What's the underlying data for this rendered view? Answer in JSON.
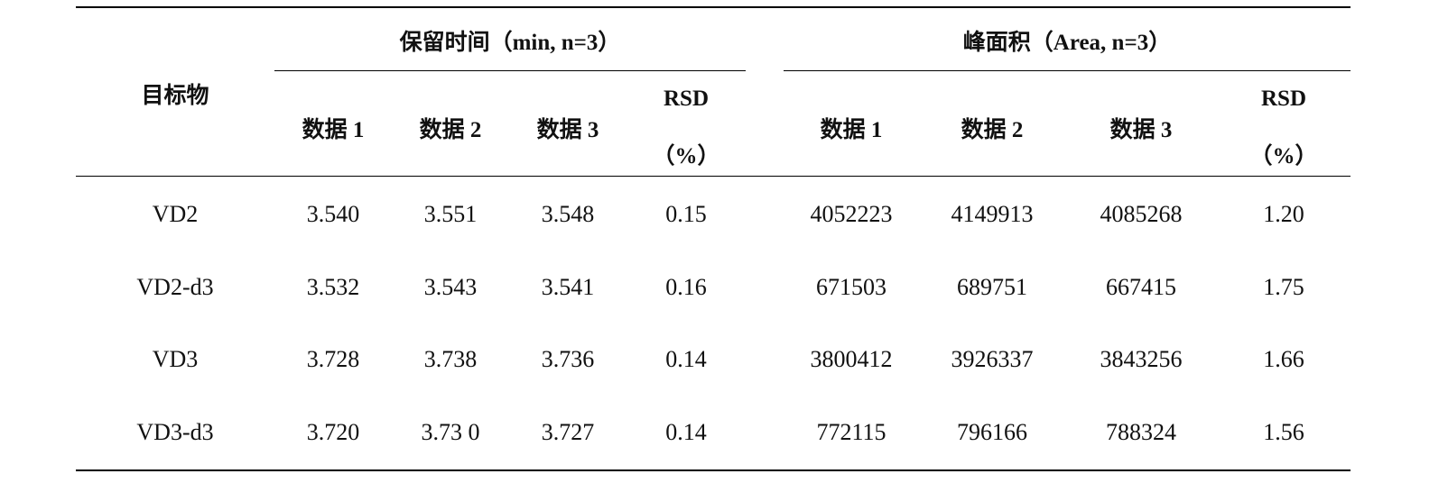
{
  "table": {
    "label_header": "目标物",
    "groups": [
      {
        "title": "保留时间（min, n=3）",
        "columns": [
          "数据 1",
          "数据 2",
          "数据 3"
        ],
        "rsd_label_line1": "RSD",
        "rsd_label_line2": "（%）"
      },
      {
        "title": "峰面积（Area, n=3）",
        "columns": [
          "数据 1",
          "数据 2",
          "数据 3"
        ],
        "rsd_label_line1": "RSD",
        "rsd_label_line2": "（%）"
      }
    ],
    "rows": [
      {
        "name": "VD2",
        "rt": [
          "3.540",
          "3.551",
          "3.548"
        ],
        "rt_rsd": "0.15",
        "area": [
          "4052223",
          "4149913",
          "4085268"
        ],
        "area_rsd": "1.20"
      },
      {
        "name": "VD2-d3",
        "rt": [
          "3.532",
          "3.543",
          "3.541"
        ],
        "rt_rsd": "0.16",
        "area": [
          "671503",
          "689751",
          "667415"
        ],
        "area_rsd": "1.75"
      },
      {
        "name": "VD3",
        "rt": [
          "3.728",
          "3.738",
          "3.736"
        ],
        "rt_rsd": "0.14",
        "area": [
          "3800412",
          "3926337",
          "3843256"
        ],
        "area_rsd": "1.66"
      },
      {
        "name": "VD3-d3",
        "rt": [
          "3.720",
          "3.73 0",
          "3.727"
        ],
        "rt_rsd": "0.14",
        "area": [
          "772115",
          "796166",
          "788324"
        ],
        "area_rsd": "1.56"
      }
    ]
  }
}
